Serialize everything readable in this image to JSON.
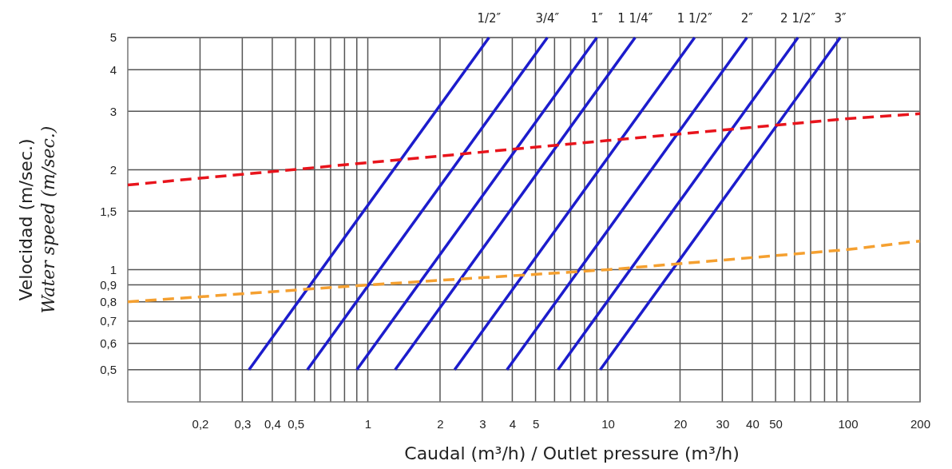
{
  "chart_data": {
    "type": "line",
    "xlabel": "Caudal (m³/h) / Outlet pressure (m³/h)",
    "ylabel": "Velocidad (m/sec.)\nWater speed (m/sec.)",
    "log": "xy",
    "grid": true,
    "marker": "none",
    "xlim": [
      0.1,
      200
    ],
    "ylim": [
      0.4,
      5
    ],
    "xticks": [
      {
        "value": 0.2,
        "label": "0,2"
      },
      {
        "value": 0.3,
        "label": "0,3"
      },
      {
        "value": 0.4,
        "label": "0,4"
      },
      {
        "value": 0.5,
        "label": "0,5"
      },
      {
        "value": 0.6,
        "label": null
      },
      {
        "value": 0.7,
        "label": null
      },
      {
        "value": 0.8,
        "label": null
      },
      {
        "value": 0.9,
        "label": null
      },
      1,
      2,
      3,
      4,
      5,
      {
        "value": 6,
        "label": null
      },
      {
        "value": 7,
        "label": null
      },
      {
        "value": 8,
        "label": null
      },
      {
        "value": 9,
        "label": null
      },
      10,
      20,
      30,
      40,
      50,
      {
        "value": 60,
        "label": null
      },
      {
        "value": 70,
        "label": null
      },
      {
        "value": 80,
        "label": null
      },
      {
        "value": 90,
        "label": null
      },
      100,
      200
    ],
    "yticks": [
      {
        "value": 0.5,
        "label": "0,5"
      },
      {
        "value": 0.6,
        "label": "0,6"
      },
      {
        "value": 0.7,
        "label": "0,7"
      },
      {
        "value": 0.8,
        "label": "0,8"
      },
      {
        "value": 0.9,
        "label": "0,9"
      },
      1,
      {
        "value": 1.5,
        "label": "1,5"
      },
      2,
      3,
      4,
      5
    ],
    "series": [
      {
        "name": "1/2″",
        "color": "#1c1ccc",
        "line_style": "solid",
        "x": [
          0.32,
          3.2
        ],
        "values": [
          0.5,
          5
        ]
      },
      {
        "name": "3/4″",
        "color": "#1c1ccc",
        "line_style": "solid",
        "x": [
          0.56,
          5.6
        ],
        "values": [
          0.5,
          5
        ]
      },
      {
        "name": "1″",
        "color": "#1c1ccc",
        "line_style": "solid",
        "x": [
          0.9,
          9
        ],
        "values": [
          0.5,
          5
        ]
      },
      {
        "name": "1 1/4″",
        "color": "#1c1ccc",
        "line_style": "solid",
        "x": [
          1.3,
          13
        ],
        "values": [
          0.5,
          5
        ]
      },
      {
        "name": "1 1/2″",
        "color": "#1c1ccc",
        "line_style": "solid",
        "x": [
          2.3,
          23
        ],
        "values": [
          0.5,
          5
        ]
      },
      {
        "name": "2″",
        "color": "#1c1ccc",
        "line_style": "solid",
        "x": [
          3.8,
          38
        ],
        "values": [
          0.5,
          5
        ]
      },
      {
        "name": "2 1/2″",
        "color": "#1c1ccc",
        "line_style": "solid",
        "x": [
          6.2,
          62
        ],
        "values": [
          0.5,
          5
        ]
      },
      {
        "name": "3″",
        "color": "#1c1ccc",
        "line_style": "solid",
        "x": [
          9.3,
          93
        ],
        "values": [
          0.5,
          5
        ]
      },
      {
        "color": "#e8141c",
        "line_style": "dashed",
        "x": [
          0.1,
          1,
          10,
          100,
          200
        ],
        "values": [
          1.8,
          2.1,
          2.45,
          2.85,
          2.95
        ]
      },
      {
        "color": "#f5a030",
        "line_style": "dashed",
        "x": [
          0.1,
          1,
          10,
          100,
          200
        ],
        "values": [
          0.8,
          0.9,
          1.0,
          1.15,
          1.22
        ]
      }
    ]
  }
}
